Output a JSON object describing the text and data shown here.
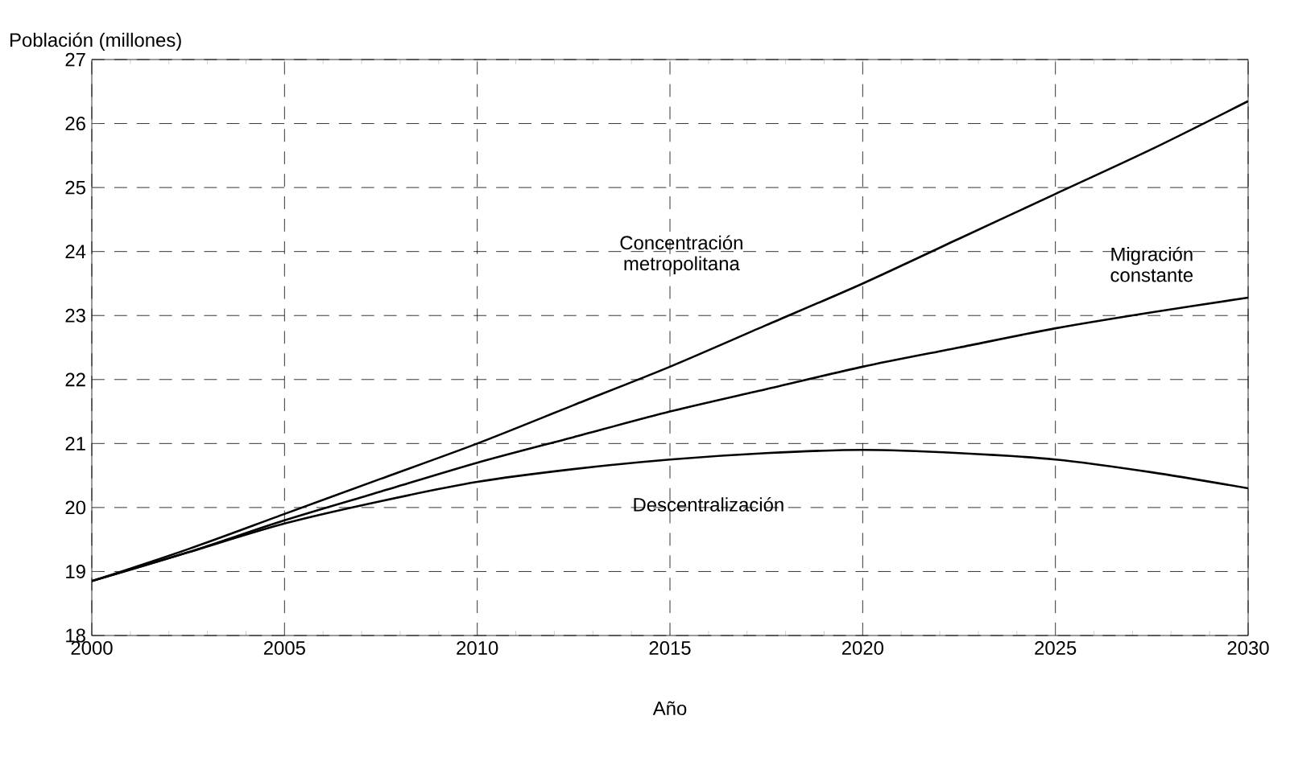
{
  "chart_data": {
    "type": "line",
    "xlabel": "Año",
    "ylabel": "Población (millones)",
    "xlim": [
      2000,
      2030
    ],
    "ylim": [
      18,
      27
    ],
    "xticks": [
      2000,
      2005,
      2010,
      2015,
      2020,
      2025,
      2030
    ],
    "yticks": [
      18,
      19,
      20,
      21,
      22,
      23,
      24,
      25,
      26,
      27
    ],
    "grid": true,
    "marker": "none",
    "x": [
      2000,
      2002.5,
      2005,
      2007.5,
      2010,
      2012.5,
      2015,
      2017.5,
      2020,
      2022.5,
      2025,
      2027.5,
      2030
    ],
    "series": [
      {
        "name": "Concentración metropolitana",
        "color": "#000000",
        "values": [
          18.85,
          19.35,
          19.9,
          20.45,
          21.0,
          21.6,
          22.2,
          22.85,
          23.5,
          24.2,
          24.9,
          25.6,
          26.35
        ]
      },
      {
        "name": "Migración constante",
        "color": "#000000",
        "values": [
          18.85,
          19.3,
          19.8,
          20.25,
          20.7,
          21.1,
          21.5,
          21.85,
          22.2,
          22.5,
          22.8,
          23.05,
          23.28
        ]
      },
      {
        "name": "Descentralización",
        "color": "#000000",
        "values": [
          18.85,
          19.3,
          19.75,
          20.1,
          20.4,
          20.6,
          20.75,
          20.85,
          20.9,
          20.85,
          20.75,
          20.55,
          20.3
        ]
      }
    ],
    "legend": false
  }
}
